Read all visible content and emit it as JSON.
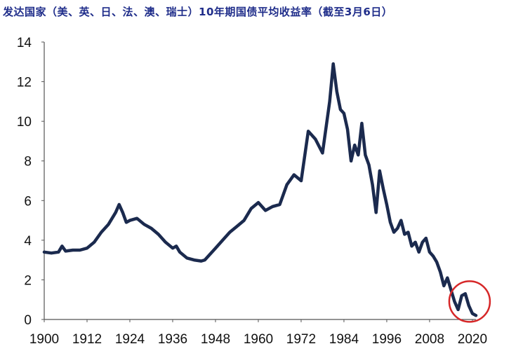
{
  "chart_data": {
    "type": "line",
    "title": "发达国家（美、英、日、法、澳、瑞士）10年期国债平均收益率（截至3月6日）",
    "xlabel": "",
    "ylabel": "",
    "xlim": [
      1900,
      2021
    ],
    "ylim": [
      0,
      14
    ],
    "x_ticks": [
      "1900",
      "1912",
      "1924",
      "1936",
      "1948",
      "1960",
      "1972",
      "1984",
      "1996",
      "2008",
      "2020"
    ],
    "y_ticks": [
      "0",
      "2",
      "4",
      "6",
      "8",
      "10",
      "12",
      "14"
    ],
    "grid": false,
    "legend": "none",
    "line_color": "#1b2a4e",
    "highlight_color": "#d62728",
    "highlight_center": [
      2020,
      0.8
    ],
    "series": [
      {
        "name": "",
        "x": [
          1900,
          1902,
          1904,
          1905,
          1906,
          1908,
          1910,
          1912,
          1914,
          1916,
          1918,
          1920,
          1921,
          1922,
          1923,
          1924,
          1926,
          1928,
          1930,
          1932,
          1934,
          1936,
          1937,
          1938,
          1940,
          1942,
          1944,
          1945,
          1946,
          1948,
          1950,
          1952,
          1954,
          1956,
          1958,
          1960,
          1962,
          1964,
          1966,
          1968,
          1970,
          1972,
          1974,
          1976,
          1978,
          1980,
          1981,
          1982,
          1983,
          1984,
          1985,
          1986,
          1987,
          1988,
          1989,
          1990,
          1991,
          1992,
          1993,
          1994,
          1995,
          1996,
          1997,
          1998,
          1999,
          2000,
          2001,
          2002,
          2003,
          2004,
          2005,
          2006,
          2007,
          2008,
          2009,
          2010,
          2011,
          2012,
          2013,
          2014,
          2015,
          2016,
          2017,
          2018,
          2019,
          2020,
          2021
        ],
        "y": [
          3.4,
          3.35,
          3.4,
          3.7,
          3.45,
          3.5,
          3.5,
          3.6,
          3.9,
          4.4,
          4.8,
          5.4,
          5.8,
          5.4,
          4.9,
          5.0,
          5.1,
          4.8,
          4.6,
          4.3,
          3.9,
          3.6,
          3.7,
          3.4,
          3.1,
          3.0,
          2.95,
          3.0,
          3.2,
          3.6,
          4.0,
          4.4,
          4.7,
          5.0,
          5.6,
          5.9,
          5.5,
          5.7,
          5.8,
          6.8,
          7.3,
          7.0,
          9.5,
          9.1,
          8.4,
          11.0,
          12.9,
          11.5,
          10.6,
          10.4,
          9.6,
          8.0,
          8.8,
          8.3,
          9.9,
          8.3,
          7.8,
          6.8,
          5.4,
          7.5,
          6.6,
          5.8,
          4.9,
          4.4,
          4.6,
          5.0,
          4.3,
          4.4,
          3.7,
          3.9,
          3.4,
          3.9,
          4.1,
          3.4,
          3.2,
          2.9,
          2.4,
          1.7,
          2.1,
          1.5,
          0.9,
          0.5,
          1.2,
          1.3,
          0.7,
          0.3,
          0.2
        ]
      }
    ]
  }
}
